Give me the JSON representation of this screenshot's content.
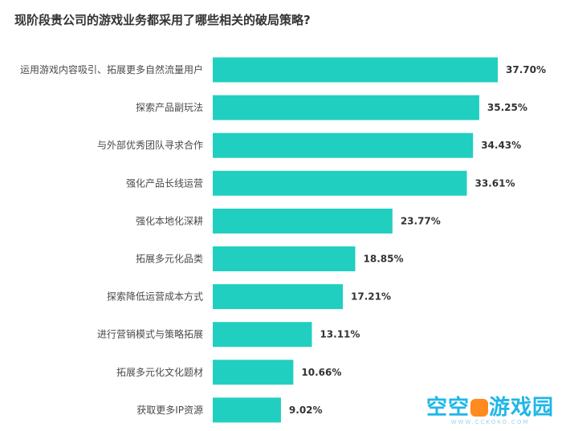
{
  "chart_data": {
    "type": "bar",
    "orientation": "horizontal",
    "title": "现阶段贵公司的游戏业务都采用了哪些相关的破局策略?",
    "categories": [
      "运用游戏内容吸引、拓展更多自然流量用户",
      "探索产品副玩法",
      "与外部优秀团队寻求合作",
      "强化产品长线运营",
      "强化本地化深耕",
      "拓展多元化品类",
      "探索降低运营成本方式",
      "进行营销模式与策略拓展",
      "拓展多元化文化题材",
      "获取更多IP资源"
    ],
    "values": [
      37.7,
      35.25,
      34.43,
      33.61,
      23.77,
      18.85,
      17.21,
      13.11,
      10.66,
      9.02
    ],
    "value_labels": [
      "37.70%",
      "35.25%",
      "34.43%",
      "33.61%",
      "23.77%",
      "18.85%",
      "17.21%",
      "13.11%",
      "10.66%",
      "9.02%"
    ],
    "unit": "%",
    "bar_color": "#20cfc0",
    "grid": false,
    "legend": "none"
  },
  "watermark": {
    "main_left": "空空",
    "main_right": "游戏园",
    "sub": "WWW.CCKOKO.COM",
    "color": "#1fb6e8",
    "badge_color": "#ff8a1f"
  }
}
